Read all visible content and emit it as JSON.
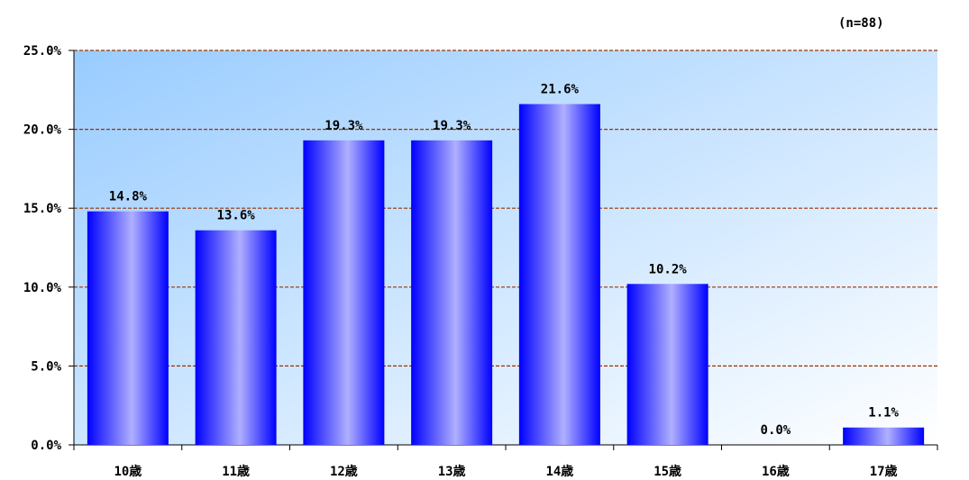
{
  "annotation": "(n=88)",
  "chart_data": {
    "type": "bar",
    "categories": [
      "10歳",
      "11歳",
      "12歳",
      "13歳",
      "14歳",
      "15歳",
      "16歳",
      "17歳"
    ],
    "values": [
      14.8,
      13.6,
      19.3,
      19.3,
      21.6,
      10.2,
      0.0,
      1.1
    ],
    "value_labels": [
      "14.8%",
      "13.6%",
      "19.3%",
      "19.3%",
      "21.6%",
      "10.2%",
      "0.0%",
      "1.1%"
    ],
    "y_ticks": [
      0,
      5,
      10,
      15,
      20,
      25
    ],
    "y_tick_labels": [
      "0.0%",
      "5.0%",
      "10.0%",
      "15.0%",
      "20.0%",
      "25.0%"
    ],
    "ylim": [
      0,
      25
    ],
    "grid": true,
    "colors": {
      "bar_edge": "#0000ff",
      "bar_center": "#b0b0ff",
      "gridline": "#993300",
      "plot_bg_top": "#99ccff",
      "plot_bg_bottom": "#ffffff"
    }
  }
}
